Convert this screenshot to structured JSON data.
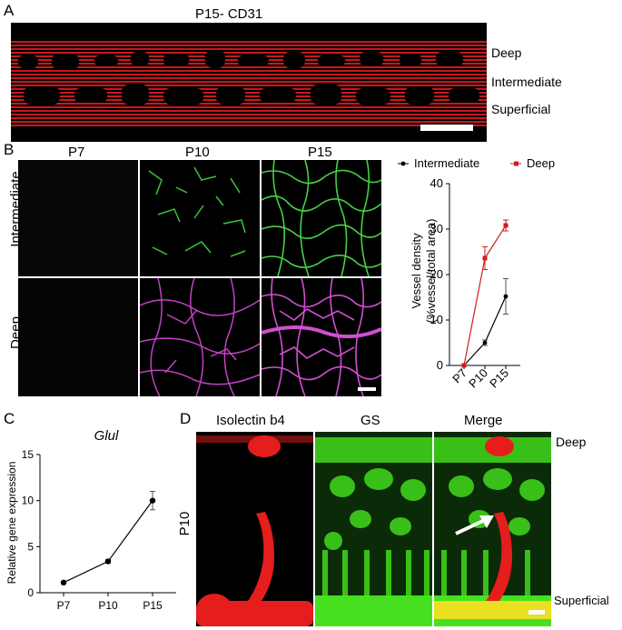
{
  "panelA": {
    "letter": "A",
    "title": "P15- CD31",
    "layers": [
      "Deep",
      "Intermediate",
      "Superficial"
    ]
  },
  "panelB": {
    "letter": "B",
    "columns": [
      "P7",
      "P10",
      "P15"
    ],
    "rows": [
      "Intermediate",
      "Deep"
    ]
  },
  "panelC": {
    "letter": "C",
    "gene": "Glul"
  },
  "panelD": {
    "letter": "D",
    "columns": [
      "Isolectin b4",
      "GS",
      "Merge"
    ],
    "row_label": "P10",
    "layers": [
      "Deep",
      "Superficial"
    ]
  },
  "chart_data": [
    {
      "id": "vessel-density",
      "type": "line",
      "categories": [
        "P7",
        "P10",
        "P15"
      ],
      "series": [
        {
          "name": "Intermediate",
          "color": "#000000",
          "values": [
            0,
            5,
            15.2
          ],
          "error": [
            0,
            0.6,
            3.9
          ]
        },
        {
          "name": "Deep",
          "color": "#d01c1c",
          "values": [
            0,
            23.6,
            30.8
          ],
          "error": [
            0,
            2.5,
            1.2
          ]
        }
      ],
      "ylabel": "Vessel density",
      "ylabel2": "(%vessel/total area)",
      "ylim": [
        0,
        40
      ],
      "yticks": [
        "0",
        "10",
        "20",
        "30",
        "40"
      ],
      "legend": "top"
    },
    {
      "id": "glul-expression",
      "type": "line",
      "title": "Glul",
      "categories": [
        "P7",
        "P10",
        "P15"
      ],
      "series": [
        {
          "color": "#000000",
          "values": [
            1.1,
            3.4,
            10.0
          ],
          "error": [
            0.1,
            0.2,
            1.0
          ]
        }
      ],
      "ylabel": "Relative gene expression",
      "ylim": [
        0,
        15
      ],
      "yticks": [
        "0",
        "5",
        "10",
        "15"
      ]
    }
  ]
}
